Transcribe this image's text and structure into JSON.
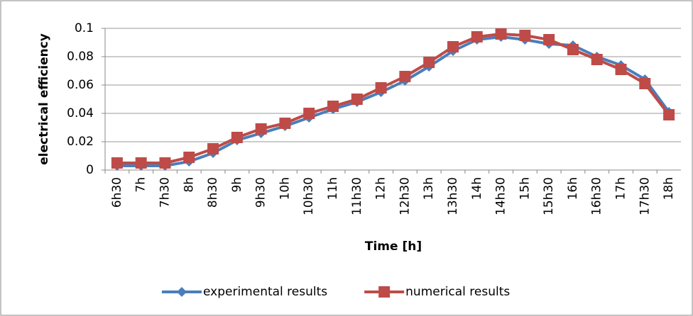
{
  "chart_data": {
    "type": "line",
    "x_label": "Time [h]",
    "y_label": "electrical efficiency",
    "categories": [
      "6h30",
      "7h",
      "7h30",
      "8h",
      "8h30",
      "9h",
      "9h30",
      "10h",
      "10h30",
      "11h",
      "11h30",
      "12h",
      "12h30",
      "13h",
      "13h30",
      "14h",
      "14h30",
      "15h",
      "15h30",
      "16h",
      "16h30",
      "17h",
      "17h30",
      "18h"
    ],
    "series": [
      {
        "name": "experimental results",
        "color": "#4a7ebb",
        "marker": "diamond",
        "values": [
          0.003,
          0.003,
          0.003,
          0.006,
          0.012,
          0.021,
          0.026,
          0.031,
          0.037,
          0.043,
          0.048,
          0.055,
          0.063,
          0.073,
          0.084,
          0.092,
          0.094,
          0.092,
          0.089,
          0.088,
          0.08,
          0.074,
          0.064,
          0.041
        ]
      },
      {
        "name": "numerical results",
        "color": "#be4b48",
        "marker": "square",
        "values": [
          0.005,
          0.005,
          0.005,
          0.009,
          0.015,
          0.023,
          0.029,
          0.033,
          0.04,
          0.045,
          0.05,
          0.058,
          0.066,
          0.076,
          0.087,
          0.094,
          0.096,
          0.095,
          0.092,
          0.085,
          0.078,
          0.071,
          0.061,
          0.039
        ]
      }
    ],
    "ylim": [
      0,
      0.1
    ],
    "yticks": [
      0,
      0.02,
      0.04,
      0.06,
      0.08,
      0.1
    ],
    "grid": true,
    "legend": "bottom"
  }
}
